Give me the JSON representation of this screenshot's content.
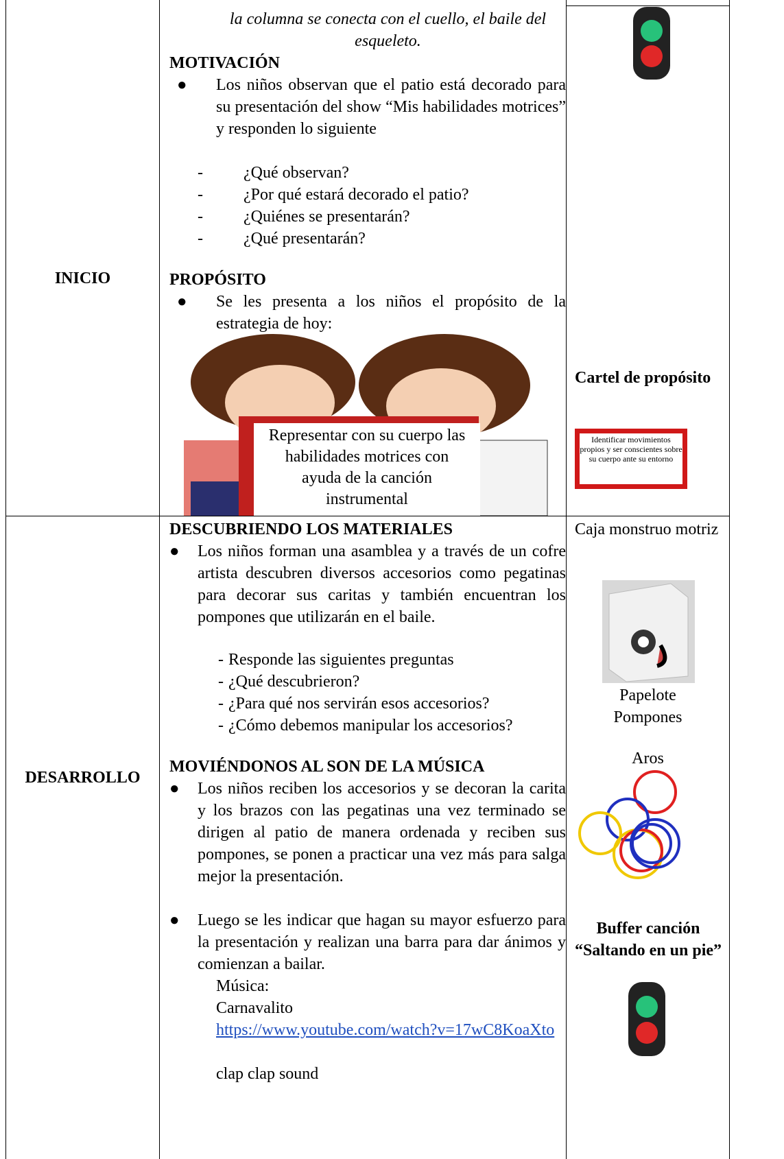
{
  "table": {
    "rows": [
      {
        "phase": "INICIO",
        "intro": "la columna se conecta con el cuello, el baile del esqueleto.",
        "sections": [
          {
            "heading": "MOTIVACIÓN",
            "bullets": [
              {
                "text": "Los niños observan que el patio está decorado para su presentación del show “Mis habilidades motrices” y responden lo siguiente",
                "subitems": [
                  "¿Qué observan?",
                  "¿Por qué estará decorado el patio?",
                  "¿Quiénes se presentarán?",
                  "¿Qué presentarán?"
                ]
              }
            ]
          },
          {
            "heading": "PROPÓSITO",
            "bullets": [
              {
                "text": "Se les presenta a los niños el propósito de la estrategia de hoy:"
              }
            ],
            "poster": "Representar con su cuerpo las habilidades motrices con ayuda de la canción instrumental"
          }
        ],
        "resources": {
          "label": "Cartel de propósito",
          "poster": "Identificar movimientos propios y ser conscientes sobre su cuerpo ante su entorno"
        }
      },
      {
        "phase": "DESARROLLO",
        "sections": [
          {
            "heading": "DESCUBRIENDO LOS MATERIALES",
            "bullets": [
              {
                "text": "Los niños forman una asamblea y a través de un cofre artista descubren diversos accesorios como pegatinas para decorar sus caritas y también encuentran los pompones que utilizarán en el baile.",
                "subitems": [
                  "Responde las siguientes preguntas",
                  "¿Qué descubrieron?",
                  "¿Para qué nos servirán esos accesorios?",
                  "¿Cómo debemos manipular los accesorios?"
                ]
              }
            ]
          },
          {
            "heading": "MOVIÉNDONOS AL SON DE LA MÚSICA",
            "bullets": [
              {
                "text": "Los niños reciben los accesorios y se decoran la carita y los brazos con las pegatinas una vez terminado se dirigen al patio de manera ordenada y reciben sus pompones, se ponen a practicar una vez más para salga mejor la presentación."
              },
              {
                "text": "Luego se les indicar que hagan su mayor esfuerzo para la presentación y realizan una barra para dar ánimos y comienzan a bailar.",
                "notes": [
                  "Música:",
                  "Carnavalito"
                ],
                "link": "https://www.youtube.com/watch?v=17wC8KoaXto",
                "after": "clap clap sound"
              }
            ]
          }
        ],
        "resources": {
          "box": "Caja monstruo motriz",
          "items": [
            "Papelote",
            "Pompones",
            "Aros"
          ],
          "music": "Buffer canción “Saltando en un pie”"
        }
      }
    ]
  }
}
